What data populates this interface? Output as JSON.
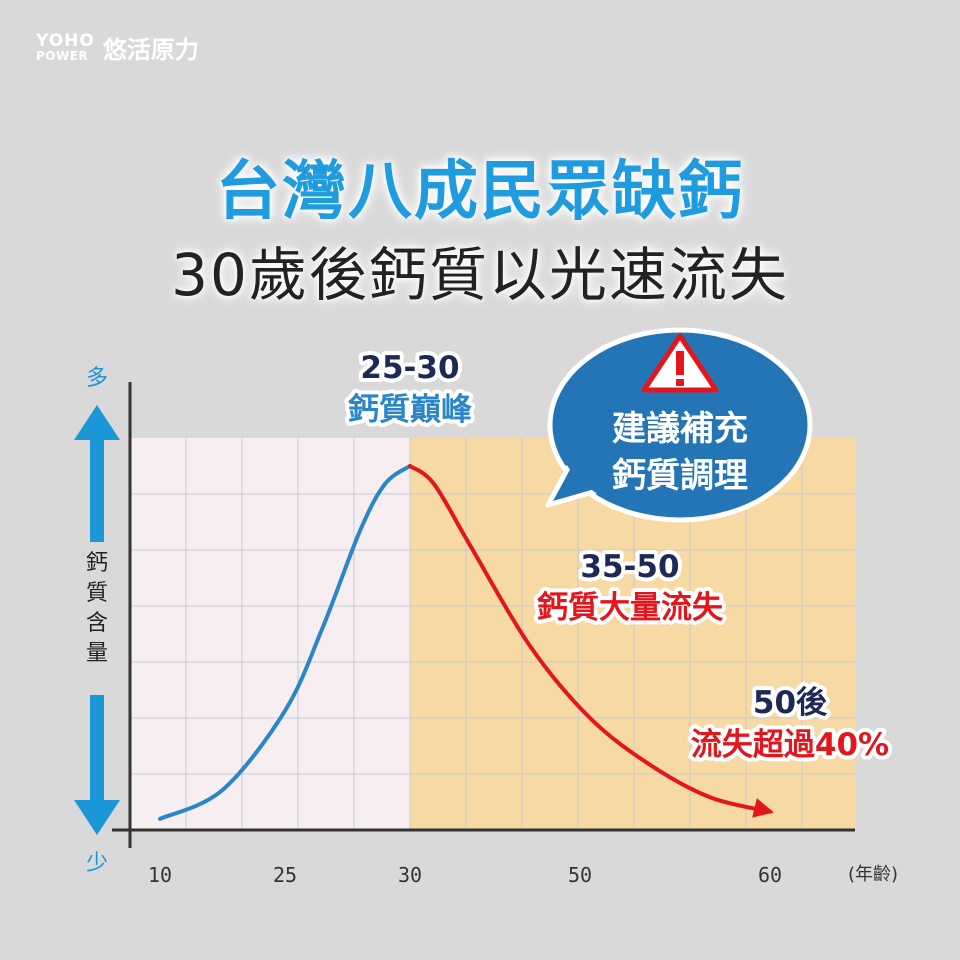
{
  "brand": {
    "mark_top": "YOHO",
    "mark_bottom": "POWER",
    "name": "悠活原力"
  },
  "title": {
    "line1": "台灣八成民眾缺鈣",
    "line2": "30歲後鈣質以光速流失"
  },
  "colors": {
    "rise": "#2a86c6",
    "fall": "#e3161c",
    "zone_young": "#f7eef1",
    "zone_old": "#f7d9a3",
    "arrow": "#1b96d6",
    "navy": "#1d2a56",
    "bubble": "#2475b6"
  },
  "chart_data": {
    "type": "line",
    "xlabel": "(年齡)",
    "ylabel": "鈣質含量",
    "y_top_label": "多",
    "y_bottom_label": "少",
    "x_ticks": [
      "10",
      "25",
      "30",
      "50",
      "60"
    ],
    "series": [
      {
        "x": [
          10,
          15,
          20,
          23,
          26,
          28,
          30
        ],
        "y": [
          2,
          10,
          32,
          55,
          82,
          95,
          100
        ]
      },
      {
        "x": [
          30,
          32,
          35,
          40,
          45,
          50,
          55,
          60
        ],
        "y": [
          100,
          95,
          78,
          50,
          30,
          17,
          8,
          4
        ]
      }
    ],
    "annotations": [
      {
        "range": "25-30",
        "text": "鈣質巔峰"
      },
      {
        "range": "35-50",
        "text": "鈣質大量流失"
      },
      {
        "range": "50後",
        "text": "流失超過40%"
      }
    ],
    "callout": {
      "line1": "建議補充",
      "line2": "鈣質調理"
    }
  }
}
